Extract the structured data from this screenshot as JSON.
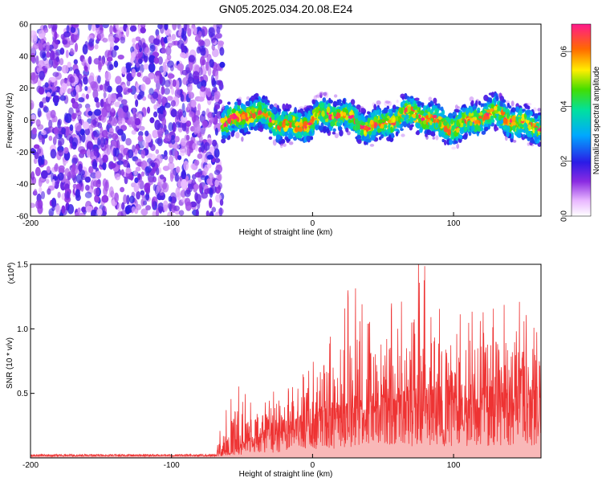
{
  "title": "GN05.2025.034.20.08.E24",
  "chart_data": [
    {
      "type": "heatmap",
      "xlabel": "Height of straight line (km)",
      "ylabel": "Frequency (Hz)",
      "xlim": [
        -200,
        162
      ],
      "ylim": [
        -60,
        60
      ],
      "x_ticks": [
        -200,
        -100,
        0,
        100
      ],
      "y_ticks": [
        -60,
        -40,
        -20,
        0,
        20,
        40,
        60
      ],
      "colorbar": {
        "label": "Normalized spectral amplitude",
        "range": [
          0,
          0.7
        ],
        "ticks": [
          0.0,
          0.2,
          0.4,
          0.6
        ],
        "tick_labels": [
          "0.0",
          "0.2",
          "0.4",
          "0.6"
        ]
      },
      "regions": [
        {
          "x_range": [
            -200,
            -64
          ],
          "freq_range": [
            -60,
            60
          ],
          "amplitude": [
            0.05,
            0.2
          ],
          "pattern": "broadband noise"
        },
        {
          "x_range": [
            -64,
            162
          ],
          "freq_center": 0,
          "freq_halfwidth": 15,
          "amplitude": [
            0.1,
            0.7
          ],
          "pattern": "narrow band near 0 Hz"
        }
      ]
    },
    {
      "type": "line",
      "xlabel": "Height of straight line (km)",
      "ylabel": "SNR (10 * v/v)",
      "y_scale_label": "(x10",
      "y_scale_exp": "4",
      "y_scale_close": ")",
      "xlim": [
        -200,
        162
      ],
      "ylim": [
        0,
        1.5
      ],
      "x_ticks": [
        -200,
        -100,
        0,
        100
      ],
      "y_ticks": [
        0.5,
        1.0,
        1.5
      ],
      "y_tick_labels": [
        "0.5",
        "1.0",
        "1.5"
      ],
      "series": [
        {
          "color": "#ee3333",
          "envelope": [
            {
              "x": -200,
              "baseline": 0.02,
              "peak": 0.03
            },
            {
              "x": -70,
              "baseline": 0.02,
              "peak": 0.04
            },
            {
              "x": -55,
              "baseline": 0.05,
              "peak": 0.6
            },
            {
              "x": -40,
              "baseline": 0.1,
              "peak": 0.4
            },
            {
              "x": 0,
              "baseline": 0.2,
              "peak": 0.7
            },
            {
              "x": 26,
              "baseline": 0.25,
              "peak": 1.32
            },
            {
              "x": 50,
              "baseline": 0.28,
              "peak": 1.0
            },
            {
              "x": 75,
              "baseline": 0.3,
              "peak": 1.5
            },
            {
              "x": 100,
              "baseline": 0.3,
              "peak": 1.0
            },
            {
              "x": 140,
              "baseline": 0.3,
              "peak": 1.2
            },
            {
              "x": 162,
              "baseline": 0.3,
              "peak": 1.1
            }
          ]
        }
      ]
    }
  ]
}
